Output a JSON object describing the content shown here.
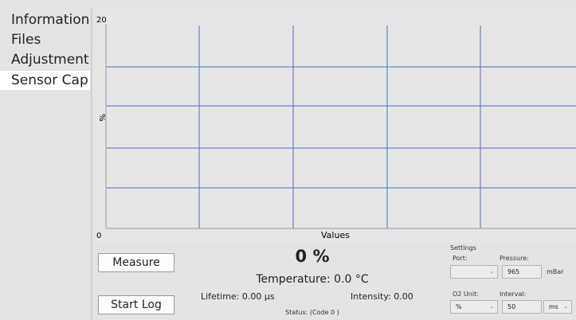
{
  "menu": {
    "items": [
      "Information",
      "Files",
      "Adjustment",
      "Sensor Cap"
    ],
    "selected": "Sensor Cap"
  },
  "plot": {
    "y_top_label": "20",
    "y_bottom_label": "0",
    "y_axis_label": "%",
    "x_axis_label": "Values"
  },
  "readout": {
    "value": "0 %",
    "temperature": "Temperature:  0.0 °C",
    "lifetime": "Lifetime: 0.00 µs",
    "intensity": "Intensity: 0.00",
    "status": "Status:  (Code 0 )"
  },
  "buttons": {
    "measure": "Measure",
    "start_log": "Start Log"
  },
  "settings": {
    "title": "Settings",
    "port_label": "Port:",
    "pressure_label": "Pressure:",
    "pressure_value": "965",
    "pressure_unit": "mBar",
    "o2_unit_label": "O2 Unit:",
    "o2_unit_value": "%",
    "interval_label": "Interval:",
    "interval_value": "50",
    "interval_unit": "ms"
  }
}
